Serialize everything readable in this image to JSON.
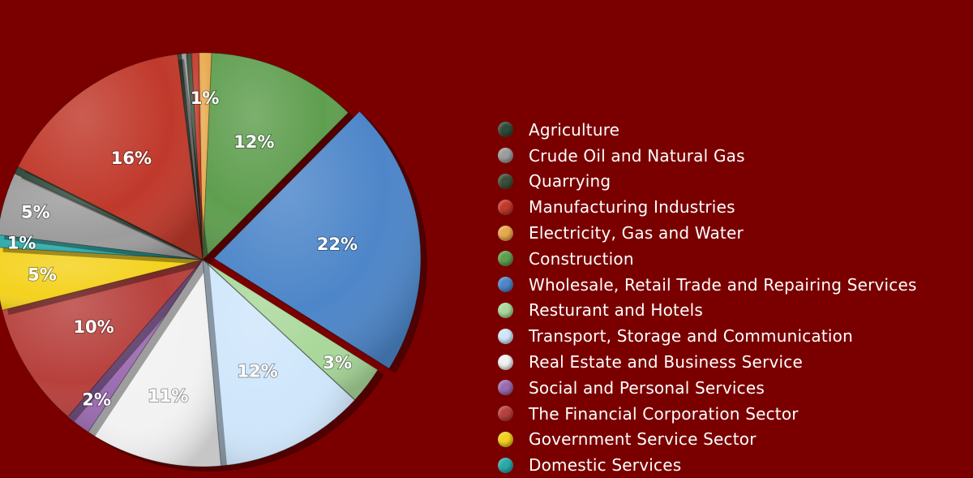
{
  "chart_data": {
    "type": "pie",
    "title": "",
    "legend_position": "right",
    "slices": [
      {
        "name": "Agriculture",
        "value": 0.3,
        "label": "",
        "color": "#2f4a38"
      },
      {
        "name": "Crude Oil and Natural Gas",
        "value": 0.4,
        "label": "",
        "color": "#9c9c9c"
      },
      {
        "name": "Quarrying",
        "value": 0.4,
        "label": "",
        "color": "#3a4f3a"
      },
      {
        "name": "Manufacturing Industries",
        "value": 0.6,
        "label": "",
        "color": "#c0392b"
      },
      {
        "name": "Electricity, Gas and Water",
        "value": 1,
        "label": "1%",
        "color": "#e8a94e"
      },
      {
        "name": "Construction",
        "value": 12,
        "label": "12%",
        "color": "#5f9e4f"
      },
      {
        "name": "Wholesale, Retail Trade and Repairing Services",
        "value": 22,
        "label": "22%",
        "color": "#4d86c9"
      },
      {
        "name": "Resturant and Hotels",
        "value": 3,
        "label": "3%",
        "color": "#a9d89a"
      },
      {
        "name": "Transport, Storage and Communication",
        "value": 12,
        "label": "12%",
        "color": "#cfe6fb"
      },
      {
        "name": "Real Estate and Business Service",
        "value": 11,
        "label": "11%",
        "color": "#f2f2f2"
      },
      {
        "name": "Social and Personal Services",
        "value": 2,
        "label": "2%",
        "color": "#9b6bb0"
      },
      {
        "name": "The Financial Corporation Sector",
        "value": 10,
        "label": "10%",
        "color": "#b7403c"
      },
      {
        "name": "Government Service Sector",
        "value": 5,
        "label": "5%",
        "color": "#f4d21e"
      },
      {
        "name": "Domestic Services",
        "value": 1,
        "label": "1%",
        "color": "#2aa8a8"
      },
      {
        "name": "Crude Oil and Natural Gas",
        "value": 5,
        "label": "5%",
        "color": "#9c9c9c"
      },
      {
        "name": "Agriculture",
        "value": 0.6,
        "label": "",
        "color": "#2f4a38"
      },
      {
        "name": "Manufacturing Industries",
        "value": 16,
        "label": "16%",
        "color": "#c0392b"
      }
    ],
    "legend": [
      {
        "label": "Agriculture",
        "color": "#2f4a38"
      },
      {
        "label": "Crude Oil and Natural Gas",
        "color": "#9c9c9c"
      },
      {
        "label": "Quarrying",
        "color": "#3a4f3a"
      },
      {
        "label": "Manufacturing Industries",
        "color": "#c0392b"
      },
      {
        "label": "Electricity, Gas and Water",
        "color": "#e8a94e"
      },
      {
        "label": "Construction",
        "color": "#5f9e4f"
      },
      {
        "label": "Wholesale, Retail Trade and Repairing Services",
        "color": "#4d86c9"
      },
      {
        "label": "Resturant and Hotels",
        "color": "#a9d89a"
      },
      {
        "label": "Transport, Storage and Communication",
        "color": "#cfe6fb"
      },
      {
        "label": "Real Estate and Business Service",
        "color": "#f2f2f2"
      },
      {
        "label": "Social and Personal Services",
        "color": "#9b6bb0"
      },
      {
        "label": "The Financial Corporation Sector",
        "color": "#b7403c"
      },
      {
        "label": "Government Service Sector",
        "color": "#f4d21e"
      },
      {
        "label": "Domestic Services",
        "color": "#2aa8a8"
      }
    ]
  }
}
